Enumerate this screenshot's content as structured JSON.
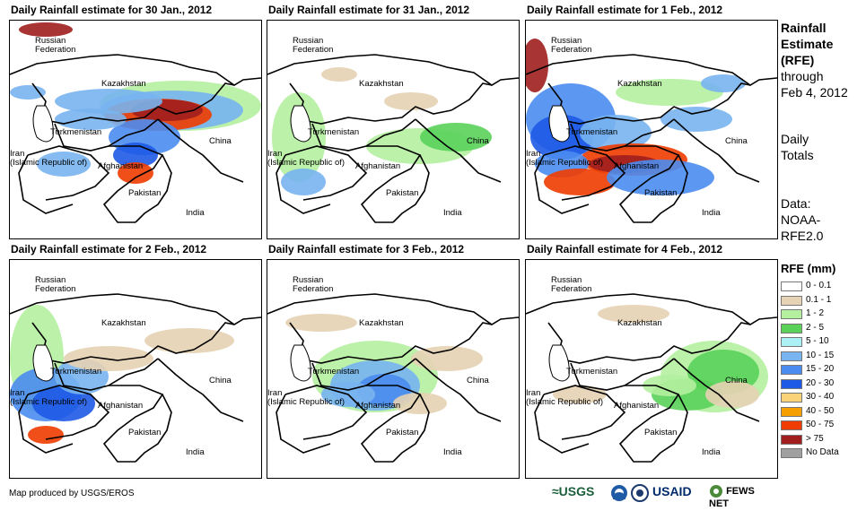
{
  "panels": [
    {
      "title": "Daily Rainfall estimate for 30 Jan., 2012",
      "intensity": "heavy-north"
    },
    {
      "title": "Daily Rainfall estimate for 31 Jan., 2012",
      "intensity": "light"
    },
    {
      "title": "Daily Rainfall estimate for 1 Feb., 2012",
      "intensity": "heavy-south"
    },
    {
      "title": "Daily Rainfall estimate for 2 Feb., 2012",
      "intensity": "west"
    },
    {
      "title": "Daily Rainfall estimate for 3 Feb., 2012",
      "intensity": "central"
    },
    {
      "title": "Daily Rainfall estimate for 4 Feb., 2012",
      "intensity": "east"
    }
  ],
  "map_labels": {
    "russia": "Russian\nFederation",
    "kazakhstan": "Kazakhstan",
    "turkmenistan": "Turkmenistan",
    "iran": "Iran\n(Islamic Republic of)",
    "afghanistan": "Afghanistan",
    "pakistan": "Pakistan",
    "china": "China",
    "india": "India"
  },
  "sidebar": {
    "title_line1": "Rainfall",
    "title_line2": "Estimate",
    "title_line3": "(RFE)",
    "through": "through",
    "through_date": "Feb 4, 2012",
    "daily": "Daily",
    "totals": "Totals",
    "data_label": "Data:",
    "data_src1": "NOAA-",
    "data_src2": "RFE2.0"
  },
  "legend": {
    "title": "RFE (mm)",
    "items": [
      {
        "label": "0 - 0.1",
        "color": "#ffffff"
      },
      {
        "label": "0.1 - 1",
        "color": "#e6d2b4"
      },
      {
        "label": "1 - 2",
        "color": "#b4f0a0"
      },
      {
        "label": "2 - 5",
        "color": "#5ad25a"
      },
      {
        "label": "5 - 10",
        "color": "#aaf0f5"
      },
      {
        "label": "10 - 15",
        "color": "#78b4f0"
      },
      {
        "label": "15 - 20",
        "color": "#4a8cf0"
      },
      {
        "label": "20 - 30",
        "color": "#1e5ae6"
      },
      {
        "label": "30 - 40",
        "color": "#fad278"
      },
      {
        "label": "40 - 50",
        "color": "#f5a000"
      },
      {
        "label": "50 - 75",
        "color": "#f03c00"
      },
      {
        "label": "> 75",
        "color": "#a01e1e"
      },
      {
        "label": "No Data",
        "color": "#a0a0a0"
      }
    ]
  },
  "footer": {
    "credit": "Map produced by USGS/EROS",
    "usgs": "≈USGS",
    "usaid": "USAID",
    "fews": "FEWS NET"
  }
}
